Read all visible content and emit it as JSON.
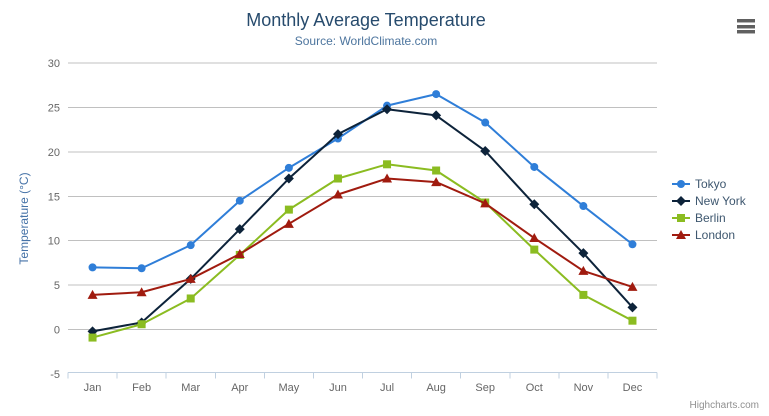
{
  "credits": {
    "label": "Highcharts.com"
  },
  "icons": {
    "export_menu": "hamburger-menu-icon"
  },
  "chart_data": {
    "type": "line",
    "title": "Monthly Average Temperature",
    "subtitle": "Source: WorldClimate.com",
    "categories": [
      "Jan",
      "Feb",
      "Mar",
      "Apr",
      "May",
      "Jun",
      "Jul",
      "Aug",
      "Sep",
      "Oct",
      "Nov",
      "Dec"
    ],
    "series": [
      {
        "name": "Tokyo",
        "color": "#2f7ed8",
        "marker": "circle",
        "values": [
          7.0,
          6.9,
          9.5,
          14.5,
          18.2,
          21.5,
          25.2,
          26.5,
          23.3,
          18.3,
          13.9,
          9.6
        ]
      },
      {
        "name": "New York",
        "color": "#0d233a",
        "marker": "diamond",
        "values": [
          -0.2,
          0.8,
          5.7,
          11.3,
          17.0,
          22.0,
          24.8,
          24.1,
          20.1,
          14.1,
          8.6,
          2.5
        ]
      },
      {
        "name": "Berlin",
        "color": "#8bbc21",
        "marker": "square",
        "values": [
          -0.9,
          0.6,
          3.5,
          8.4,
          13.5,
          17.0,
          18.6,
          17.9,
          14.3,
          9.0,
          3.9,
          1.0
        ]
      },
      {
        "name": "London",
        "color": "#a01b0f",
        "marker": "triangle",
        "values": [
          3.9,
          4.2,
          5.7,
          8.5,
          11.9,
          15.2,
          17.0,
          16.6,
          14.2,
          10.3,
          6.6,
          4.8
        ]
      }
    ],
    "xlabel": "",
    "ylabel": "Temperature (°C)",
    "ylim": [
      -5,
      30
    ],
    "yticks": [
      -5,
      0,
      5,
      10,
      15,
      20,
      25,
      30
    ],
    "grid": true,
    "legend_position": "right",
    "colors": {
      "grid_line": "#C0C0C0",
      "axis_line": "#C0D0E0",
      "axis_label": "#666666",
      "yaxis_title": "#4572A7",
      "title": "#274b6d",
      "subtitle": "#4d759e",
      "legend_text": "#3E576F"
    }
  }
}
